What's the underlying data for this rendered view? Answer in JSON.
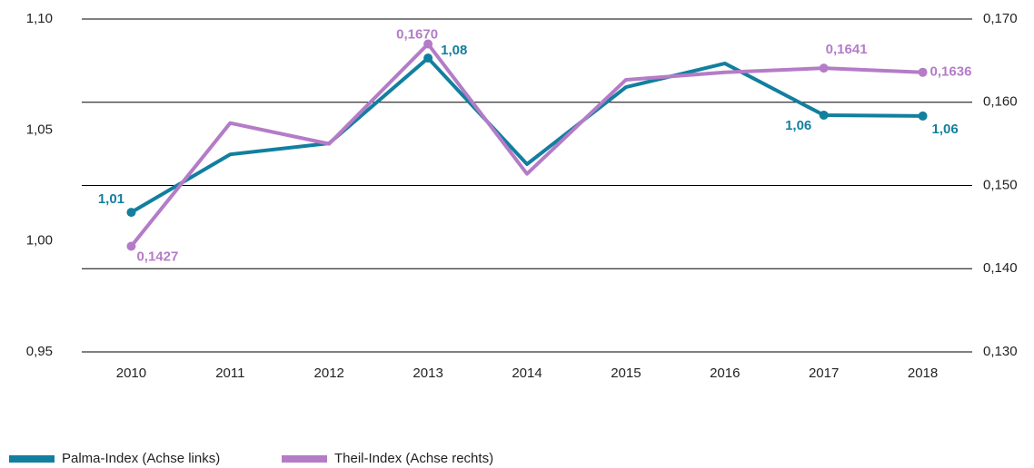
{
  "chart_data": {
    "type": "line",
    "categories": [
      "2010",
      "2011",
      "2012",
      "2013",
      "2014",
      "2015",
      "2016",
      "2017",
      "2018"
    ],
    "series": [
      {
        "name": "Palma-Index (Achse links)",
        "color": "#127f9f",
        "values": [
          1.0129,
          1.039,
          1.044,
          1.0824,
          1.0346,
          1.0693,
          1.08,
          1.0567,
          1.0563
        ],
        "value_labels": [
          "1,01",
          null,
          null,
          "1,08",
          null,
          null,
          null,
          "1,06",
          "1,06"
        ]
      },
      {
        "name": "Theil-Index (Achse rechts)",
        "color": "#b47cc7",
        "axis": "y2",
        "values": [
          0.1427,
          0.1575,
          0.155,
          0.167,
          0.1514,
          0.1627,
          0.1636,
          0.1641,
          0.1636
        ],
        "value_labels": [
          "0,1427",
          null,
          null,
          "0,1670",
          null,
          null,
          null,
          "0,1641",
          "0,1636"
        ]
      }
    ],
    "ylim": [
      0.95,
      1.1
    ],
    "yticks": [
      {
        "value": 0.95,
        "label": "0,95"
      },
      {
        "value": 1.0,
        "label": "1,00"
      },
      {
        "value": 1.05,
        "label": "1,05"
      },
      {
        "value": 1.1,
        "label": "1,10"
      }
    ],
    "y2lim": [
      0.13,
      0.17
    ],
    "y2ticks": [
      {
        "value": 0.13,
        "label": "0,130"
      },
      {
        "value": 0.14,
        "label": "0,140"
      },
      {
        "value": 0.15,
        "label": "0,150"
      },
      {
        "value": 0.16,
        "label": "0,160"
      },
      {
        "value": 0.17,
        "label": "0,170"
      }
    ],
    "grid": true
  }
}
